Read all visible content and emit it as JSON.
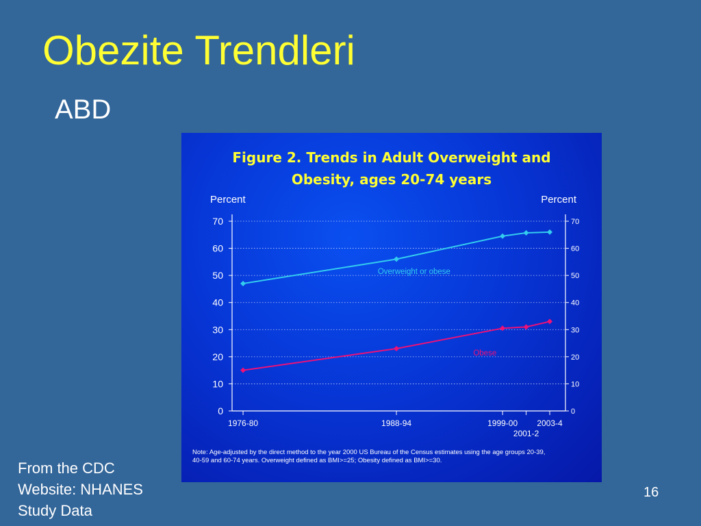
{
  "slide": {
    "title": "Obezite Trendleri",
    "subtitle": "ABD",
    "source_lines": [
      "From the CDC",
      "Website: NHANES",
      "Study Data"
    ],
    "page_number": "16"
  },
  "colors": {
    "background": "#336699",
    "title": "#ffff33",
    "overweight_series": "#33ccee",
    "obese_series": "#ee1177"
  },
  "chart_data": {
    "type": "line",
    "title_lines": [
      "Figure 2. Trends in Adult Overweight and",
      "Obesity, ages 20-74 years"
    ],
    "ylabel_left": "Percent",
    "ylabel_right": "Percent",
    "ylim": [
      0,
      70
    ],
    "yticks": [
      0,
      10,
      20,
      30,
      40,
      50,
      60,
      70
    ],
    "grid": true,
    "x_positions": [
      1978,
      1991,
      2000,
      2002,
      2004
    ],
    "x_tick_labels": [
      {
        "label": "1976-80",
        "x": 1978,
        "row": 1
      },
      {
        "label": "1988-94",
        "x": 1991,
        "row": 1
      },
      {
        "label": "1999-00",
        "x": 2000,
        "row": 1
      },
      {
        "label": "2001-2",
        "x": 2002,
        "row": 2
      },
      {
        "label": "2003-4",
        "x": 2004,
        "row": 1
      }
    ],
    "series": [
      {
        "name": "Overweight or obese",
        "color": "#33ccee",
        "values": [
          47,
          56,
          64.5,
          65.7,
          66
        ]
      },
      {
        "name": "Obese",
        "color": "#ee1177",
        "values": [
          15,
          23,
          30.5,
          31,
          33
        ]
      }
    ],
    "note_lines": [
      "Note: Age-adjusted by the direct method to the year 2000 US Bureau of the Census estimates using the age groups 20-39,",
      "40-59 and 60-74 years.  Overweight defined as BMI>=25; Obesity defined as BMI>=30."
    ]
  }
}
